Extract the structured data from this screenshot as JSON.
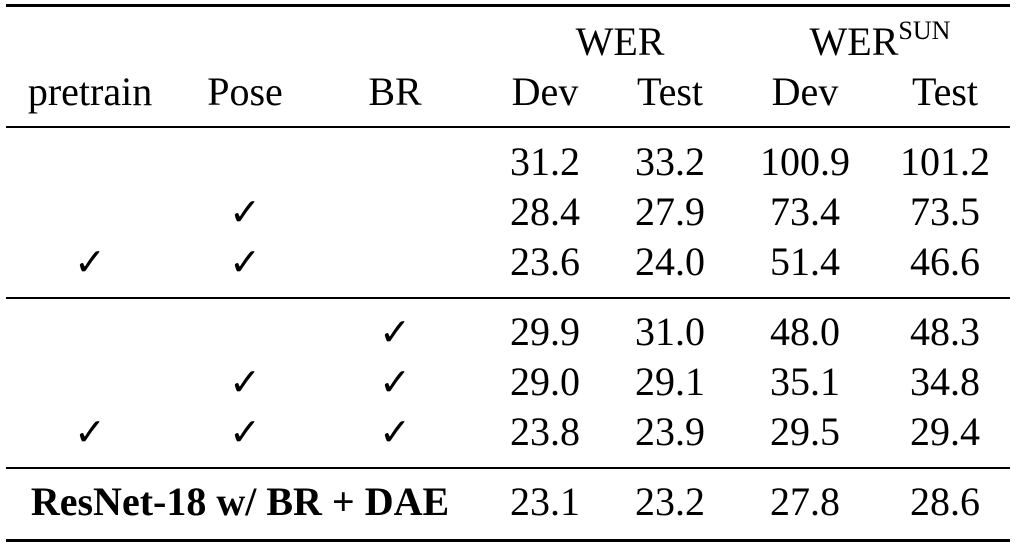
{
  "table": {
    "group_headers": {
      "wer": "WER",
      "wer_sun_base": "WER",
      "wer_sun_sup": "SUN"
    },
    "columns": [
      "pretrain",
      "Pose",
      "BR",
      "Dev",
      "Test",
      "Dev",
      "Test"
    ],
    "check_glyph": "✓",
    "section1": [
      {
        "pretrain": "",
        "pose": "",
        "br": "",
        "wer_dev": "31.2",
        "wer_test": "33.2",
        "sun_dev": "100.9",
        "sun_test": "101.2"
      },
      {
        "pretrain": "",
        "pose": "✓",
        "br": "",
        "wer_dev": "28.4",
        "wer_test": "27.9",
        "sun_dev": "73.4",
        "sun_test": "73.5"
      },
      {
        "pretrain": "✓",
        "pose": "✓",
        "br": "",
        "wer_dev": "23.6",
        "wer_test": "24.0",
        "sun_dev": "51.4",
        "sun_test": "46.6"
      }
    ],
    "section2": [
      {
        "pretrain": "",
        "pose": "",
        "br": "✓",
        "wer_dev": "29.9",
        "wer_test": "31.0",
        "sun_dev": "48.0",
        "sun_test": "48.3"
      },
      {
        "pretrain": "",
        "pose": "✓",
        "br": "✓",
        "wer_dev": "29.0",
        "wer_test": "29.1",
        "sun_dev": "35.1",
        "sun_test": "34.8"
      },
      {
        "pretrain": "✓",
        "pose": "✓",
        "br": "✓",
        "wer_dev": "23.8",
        "wer_test": "23.9",
        "sun_dev": "29.5",
        "sun_test": "29.4"
      }
    ],
    "final_row": {
      "label": "ResNet-18 w/ BR + DAE",
      "wer_dev": "23.1",
      "wer_test": "23.2",
      "sun_dev": "27.8",
      "sun_test": "28.6"
    }
  }
}
